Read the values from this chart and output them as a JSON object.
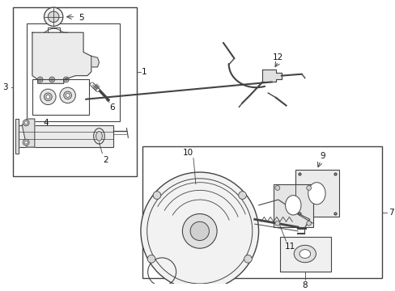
{
  "figsize": [
    4.89,
    3.6
  ],
  "dpi": 100,
  "bg_color": "#ffffff",
  "lc": "#444444",
  "tc": "#111111",
  "fs": 7.5
}
